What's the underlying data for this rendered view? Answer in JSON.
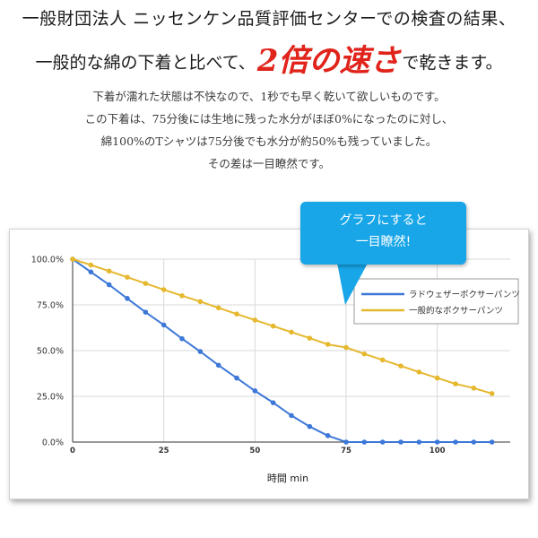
{
  "heading": {
    "line1": "一般財団法人 ニッセンケン品質評価センターでの検査の結果、",
    "line2_before": "一般的な綿の下着と比べて、",
    "line2_emphasis": "2倍の速さ",
    "line2_after": "で乾きます。"
  },
  "body": {
    "line1": "下着が濡れた状態は不快なので、1秒でも早く乾いて欲しいものです。",
    "line2": "この下着は、75分後には生地に残った水分がほぼ0%になったのに対し、",
    "line3": "綿100%のTシャツは75分後でも水分が約50%も残っていました。",
    "line4": "その差は一目瞭然です。"
  },
  "callout": {
    "line1": "グラフにすると",
    "line2": "一目瞭然!"
  },
  "chart_data": {
    "type": "line",
    "xlabel": "時間 min",
    "ylabel": "",
    "xlim": [
      0,
      120
    ],
    "ylim": [
      0,
      100
    ],
    "x_ticks": [
      0,
      25,
      50,
      75,
      100
    ],
    "y_ticks": [
      0,
      25,
      50,
      75,
      100
    ],
    "y_tick_labels": [
      "0.0%",
      "25.0%",
      "50.0%",
      "75.0%",
      "100.0%"
    ],
    "grid": true,
    "legend_position": "right",
    "x": [
      0,
      5,
      10,
      15,
      20,
      25,
      30,
      35,
      40,
      45,
      50,
      55,
      60,
      65,
      70,
      75,
      80,
      85,
      90,
      95,
      100,
      105,
      110,
      115
    ],
    "series": [
      {
        "name": "ラドウェザーボクサーパンツ",
        "color": "#3d78d8",
        "values": [
          100,
          93,
          86,
          78.5,
          71,
          64,
          56.5,
          49.5,
          42,
          35,
          28,
          21.5,
          14.5,
          8.5,
          3.5,
          0,
          0,
          0,
          0,
          0,
          0,
          0,
          0,
          0
        ]
      },
      {
        "name": "一般的なボクサーパンツ",
        "color": "#e6b82e",
        "values": [
          100,
          96.8,
          93.5,
          90.1,
          86.7,
          83.3,
          80,
          76.8,
          73.4,
          70,
          66.7,
          63.4,
          60.1,
          56.8,
          53.4,
          51.7,
          48.2,
          44.9,
          41.6,
          38.3,
          35,
          31.8,
          29.5,
          26.5
        ]
      }
    ]
  }
}
